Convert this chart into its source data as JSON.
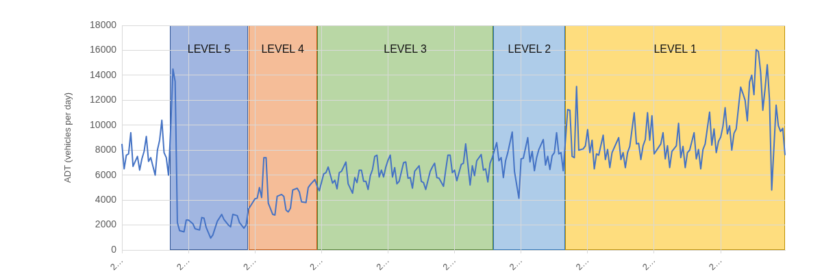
{
  "chart_data": {
    "type": "line",
    "ylabel": "ADT (vehicles per day)",
    "categories": [
      "2…",
      null,
      null,
      null,
      null,
      null,
      null,
      null,
      null,
      null,
      null,
      null,
      null,
      null,
      null,
      null,
      null,
      null,
      null,
      null,
      null,
      null,
      null,
      null,
      null,
      null,
      null,
      null,
      null,
      null,
      "2…",
      null,
      null,
      null,
      null,
      null,
      null,
      null,
      null,
      null,
      null,
      null,
      null,
      null,
      null,
      null,
      null,
      null,
      null,
      null,
      null,
      null,
      null,
      null,
      null,
      null,
      null,
      null,
      null,
      null,
      "2…",
      null,
      null,
      null,
      null,
      null,
      null,
      null,
      null,
      null,
      null,
      null,
      null,
      null,
      null,
      null,
      null,
      null,
      null,
      null,
      null,
      null,
      null,
      null,
      null,
      null,
      null,
      null,
      null,
      null,
      "2…",
      null,
      null,
      null,
      null,
      null,
      null,
      null,
      null,
      null,
      null,
      null,
      null,
      null,
      null,
      null,
      null,
      null,
      null,
      null,
      null,
      null,
      null,
      null,
      null,
      null,
      null,
      null,
      null,
      null,
      "2…",
      null,
      null,
      null,
      null,
      null,
      null,
      null,
      null,
      null,
      null,
      null,
      null,
      null,
      null,
      null,
      null,
      null,
      null,
      null,
      null,
      null,
      null,
      null,
      null,
      null,
      null,
      null,
      null,
      null,
      "2…",
      null,
      null,
      null,
      null,
      null,
      null,
      null,
      null,
      null,
      null,
      null,
      null,
      null,
      null,
      null,
      null,
      null,
      null,
      null,
      null,
      null,
      null,
      null,
      null,
      null,
      null,
      null,
      null,
      null,
      "2…",
      null,
      null,
      null,
      null,
      null,
      null,
      null,
      null,
      null,
      null,
      null,
      null,
      null,
      null,
      null,
      null,
      null,
      null,
      null,
      null,
      null,
      null,
      null,
      null,
      null,
      null,
      null,
      null,
      null,
      "2…",
      null,
      null,
      null,
      null,
      null,
      null,
      null,
      null,
      null,
      null,
      null,
      null,
      null,
      null,
      null,
      null,
      null,
      null,
      null,
      null,
      null,
      null,
      null,
      null,
      null,
      null,
      null,
      null,
      null,
      "2…",
      null,
      null,
      null,
      null,
      null,
      null,
      null,
      null,
      null,
      null,
      null,
      null,
      null,
      null,
      null,
      null,
      null,
      null,
      null,
      null,
      null,
      null,
      null,
      null,
      null,
      null,
      null,
      null,
      null,
      "2…",
      null,
      null,
      null,
      null,
      null,
      null,
      null,
      null,
      null,
      null,
      null,
      null,
      null,
      null,
      null,
      null,
      null,
      null,
      null,
      null,
      null,
      null,
      null,
      null,
      null,
      null,
      null,
      null,
      null
    ],
    "ylim": [
      0,
      18000
    ],
    "yticks": [
      0,
      2000,
      4000,
      6000,
      8000,
      10000,
      12000,
      14000,
      16000,
      18000
    ],
    "grid": true,
    "marker": "none",
    "line_style": "solid",
    "series": [
      {
        "color": "#4472c4",
        "values": [
          8500,
          6500,
          7600,
          7700,
          9400,
          6700,
          null,
          7500,
          6400,
          7300,
          7900,
          9100,
          7100,
          7400,
          null,
          6000,
          8000,
          8800,
          10400,
          7800,
          7400,
          6000,
          9800,
          14500,
          13500,
          2200,
          1550,
          null,
          1450,
          2400,
          2400,
          null,
          2100,
          1700,
          null,
          1600,
          2600,
          2550,
          1800,
          null,
          950,
          1200,
          null,
          2300,
          null,
          2850,
          2450,
          null,
          2000,
          1850,
          2850,
          null,
          2750,
          2200,
          null,
          1750,
          2000,
          3250,
          null,
          null,
          4100,
          4150,
          5000,
          4200,
          7400,
          7400,
          3750,
          null,
          2850,
          2800,
          4300,
          null,
          4450,
          4300,
          3200,
          3050,
          3350,
          4800,
          null,
          4950,
          4650,
          3850,
          null,
          3800,
          5000,
          5250,
          null,
          5650,
          5100,
          4750,
          null,
          6100,
          6200,
          6650,
          null,
          5350,
          5600,
          4900,
          6200,
          6300,
          null,
          7050,
          5300,
          null,
          4550,
          5800,
          5400,
          6400,
          6400,
          5500,
          5500,
          4850,
          5950,
          6450,
          7500,
          7600,
          5850,
          6400,
          5850,
          6650,
          7200,
          7600,
          5850,
          6600,
          5300,
          5500,
          null,
          7000,
          7050,
          5750,
          5800,
          4950,
          6300,
          null,
          6750,
          5500,
          5400,
          4850,
          null,
          6300,
          6650,
          6950,
          5800,
          5750,
          null,
          5100,
          6400,
          7600,
          7600,
          6200,
          6400,
          5550,
          null,
          6850,
          6950,
          8500,
          6850,
          5200,
          6750,
          5950,
          7150,
          null,
          7650,
          6400,
          6500,
          5450,
          6950,
          7400,
          null,
          8600,
          7150,
          7400,
          5800,
          7150,
          7800,
          null,
          9450,
          6300,
          null,
          4150,
          7300,
          7350,
          null,
          9000,
          7050,
          7900,
          6350,
          7400,
          8050,
          null,
          8850,
          6800,
          7500,
          6450,
          7550,
          7800,
          9400,
          7700,
          7800,
          6350,
          null,
          11250,
          11200,
          7500,
          7400,
          13100,
          8000,
          null,
          8100,
          8350,
          9650,
          7800,
          8800,
          6500,
          7700,
          7600,
          null,
          9200,
          7250,
          8050,
          6600,
          7800,
          null,
          null,
          9000,
          7250,
          7800,
          6600,
          7800,
          8300,
          null,
          11000,
          8500,
          8550,
          7250,
          8350,
          8850,
          11000,
          8800,
          10750,
          7700,
          null,
          null,
          8500,
          9400,
          7300,
          8350,
          6600,
          7900,
          null,
          8350,
          10150,
          7400,
          8300,
          6600,
          7800,
          8000,
          null,
          9400,
          7300,
          8050,
          6500,
          8050,
          8500,
          null,
          11050,
          8400,
          9700,
          7800,
          8700,
          9050,
          9900,
          11400,
          9300,
          9950,
          8000,
          9350,
          9700,
          null,
          13050,
          12550,
          12000,
          10350,
          13450,
          14000,
          12450,
          16050,
          15900,
          14250,
          11200,
          12900,
          14850,
          12050,
          4800,
          null,
          11600,
          9950,
          9500,
          9750,
          7600
        ]
      }
    ],
    "annotations": [
      "LEVEL 5",
      "LEVEL 4",
      "LEVEL 3",
      "LEVEL 2",
      "LEVEL 1"
    ]
  }
}
